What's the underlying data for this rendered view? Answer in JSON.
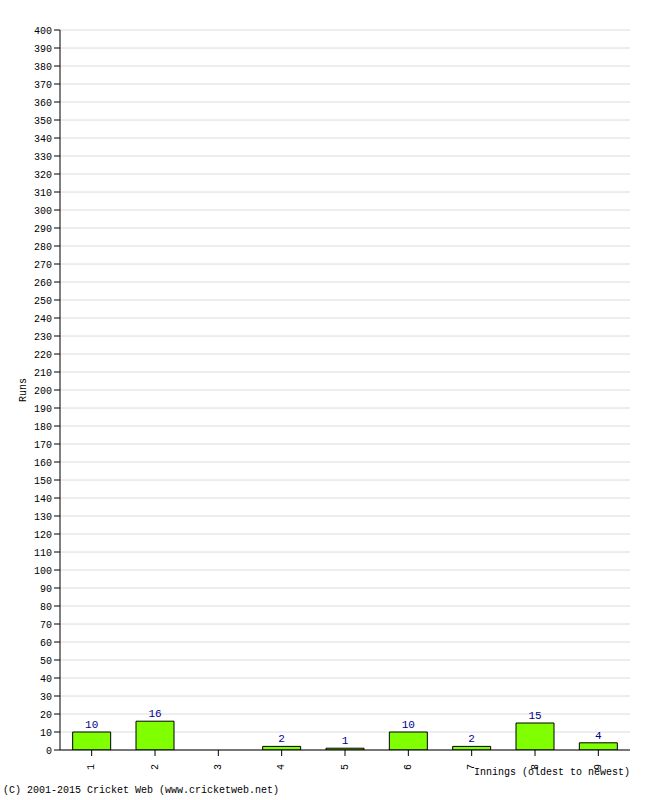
{
  "chart_data": {
    "type": "bar",
    "x_label": "Innings (oldest to newest)",
    "y_label": "Runs",
    "annotations": [
      "(C) 2001-2015 Cricket Web (www.cricketweb.net)"
    ],
    "categories": [
      "1",
      "2",
      "3",
      "4",
      "5",
      "6",
      "7",
      "8",
      "9"
    ],
    "values": [
      10,
      16,
      0,
      2,
      1,
      10,
      2,
      15,
      4
    ],
    "color": "#80ff00",
    "ylim": [
      0,
      400
    ],
    "yticks": [
      0,
      10,
      20,
      30,
      40,
      50,
      60,
      70,
      80,
      90,
      100,
      110,
      120,
      130,
      140,
      150,
      160,
      170,
      180,
      190,
      200,
      210,
      220,
      230,
      240,
      250,
      260,
      270,
      280,
      290,
      300,
      310,
      320,
      330,
      340,
      350,
      360,
      370,
      380,
      390,
      400
    ],
    "grid": true,
    "data_labels": true
  }
}
